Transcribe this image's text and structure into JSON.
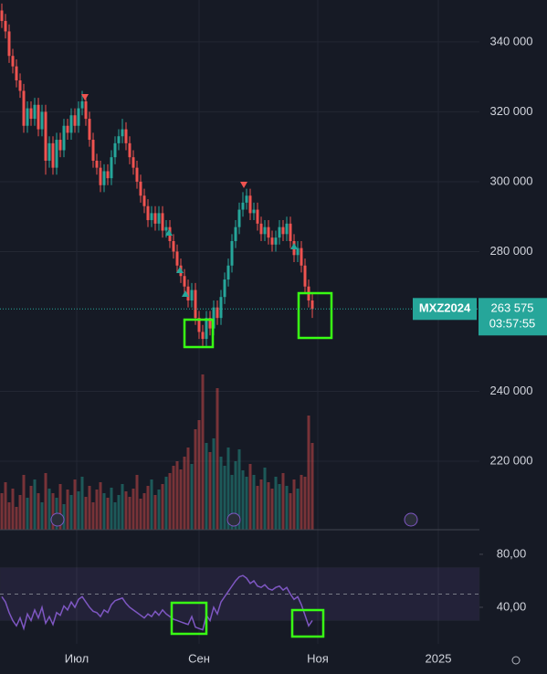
{
  "chart_data": [
    {
      "type": "candlestick",
      "name": "MXZ2024",
      "last_label": "263 575",
      "countdown": "03:57:55",
      "up_color": "#26a69a",
      "down_color": "#ef5350",
      "grid": true,
      "categories": [
        null,
        null,
        null,
        null,
        null,
        null,
        null,
        null,
        null,
        null,
        null,
        null,
        null,
        null,
        null,
        null,
        null,
        null,
        null,
        null,
        null,
        null,
        null,
        null,
        null,
        null,
        null,
        null,
        null,
        null,
        null,
        null,
        null,
        null,
        null,
        null,
        null,
        null,
        null,
        null,
        null,
        null,
        null,
        null,
        null,
        null,
        null,
        null,
        null,
        null,
        null,
        null,
        null,
        null,
        null,
        null,
        null,
        null,
        null,
        null,
        null,
        null,
        null,
        null,
        null,
        null,
        null,
        null,
        null,
        null,
        null,
        null,
        null,
        null,
        null,
        null,
        null,
        null,
        null,
        null,
        null,
        null,
        null,
        null,
        null,
        null
      ],
      "open": [
        349000,
        346000,
        343000,
        336000,
        333000,
        329000,
        326000,
        316000,
        321000,
        318000,
        322000,
        315000,
        320000,
        306000,
        311000,
        304000,
        312000,
        309000,
        316000,
        314000,
        319000,
        316000,
        321000,
        323000,
        318000,
        312000,
        306000,
        304000,
        299000,
        303000,
        301000,
        307000,
        311000,
        313000,
        315000,
        311000,
        307000,
        304000,
        300000,
        296000,
        293000,
        289000,
        291000,
        288000,
        291000,
        286000,
        287000,
        283000,
        280000,
        276000,
        273000,
        270000,
        266000,
        269000,
        261000,
        257000,
        255000,
        261000,
        258000,
        264000,
        261000,
        267000,
        272000,
        276000,
        283000,
        287000,
        292000,
        294000,
        296000,
        291000,
        292000,
        288000,
        285000,
        287000,
        284000,
        282000,
        284000,
        287000,
        285000,
        288000,
        283000,
        279000,
        281000,
        276000,
        270000,
        266000
      ],
      "high": [
        351000,
        348000,
        345000,
        338000,
        335000,
        331000,
        328000,
        323000,
        323000,
        324000,
        324000,
        322000,
        322000,
        313000,
        313000,
        314000,
        314000,
        318000,
        318000,
        321000,
        321000,
        323000,
        326000,
        325000,
        320000,
        314000,
        308000,
        306000,
        305000,
        305000,
        309000,
        313000,
        315000,
        318000,
        317000,
        313000,
        309000,
        306000,
        302000,
        298000,
        295000,
        293000,
        293000,
        293000,
        293000,
        289000,
        289000,
        285000,
        282000,
        278000,
        275000,
        272000,
        271000,
        271000,
        263000,
        259000,
        263000,
        263000,
        266000,
        266000,
        269000,
        274000,
        278000,
        285000,
        289000,
        294000,
        297000,
        298000,
        298000,
        294000,
        294000,
        290000,
        289000,
        289000,
        286000,
        286000,
        289000,
        289000,
        290000,
        290000,
        285000,
        283000,
        283000,
        278000,
        272000,
        268000
      ],
      "low": [
        344000,
        341000,
        334000,
        331000,
        327000,
        324000,
        314000,
        314000,
        316000,
        316000,
        313000,
        313000,
        302000,
        304000,
        302000,
        302000,
        307000,
        307000,
        312000,
        312000,
        314000,
        314000,
        319000,
        316000,
        310000,
        304000,
        302000,
        297000,
        297000,
        299000,
        299000,
        305000,
        309000,
        311000,
        309000,
        305000,
        302000,
        298000,
        294000,
        291000,
        287000,
        287000,
        286000,
        286000,
        284000,
        284000,
        281000,
        278000,
        274000,
        271000,
        268000,
        264000,
        264000,
        259000,
        255000,
        253000,
        253000,
        256000,
        256000,
        259000,
        259000,
        265000,
        270000,
        274000,
        281000,
        285000,
        290000,
        292000,
        289000,
        289000,
        286000,
        283000,
        283000,
        282000,
        280000,
        280000,
        282000,
        283000,
        283000,
        281000,
        277000,
        277000,
        274000,
        268000,
        264000,
        261000
      ],
      "close": [
        346000,
        343000,
        336000,
        333000,
        329000,
        326000,
        316000,
        321000,
        318000,
        322000,
        315000,
        320000,
        306000,
        311000,
        304000,
        312000,
        309000,
        316000,
        314000,
        319000,
        316000,
        321000,
        323000,
        318000,
        312000,
        306000,
        304000,
        299000,
        303000,
        301000,
        307000,
        311000,
        313000,
        315000,
        311000,
        307000,
        304000,
        300000,
        296000,
        293000,
        289000,
        291000,
        288000,
        291000,
        286000,
        287000,
        283000,
        280000,
        276000,
        273000,
        270000,
        266000,
        269000,
        261000,
        257000,
        255000,
        261000,
        258000,
        264000,
        261000,
        267000,
        272000,
        276000,
        283000,
        287000,
        292000,
        294000,
        296000,
        291000,
        292000,
        288000,
        285000,
        287000,
        284000,
        282000,
        284000,
        287000,
        285000,
        288000,
        283000,
        279000,
        281000,
        276000,
        270000,
        266000,
        263575
      ],
      "volume": [
        40,
        52,
        30,
        45,
        25,
        38,
        60,
        35,
        48,
        55,
        40,
        30,
        62,
        45,
        40,
        35,
        50,
        28,
        44,
        38,
        55,
        42,
        58,
        36,
        48,
        30,
        44,
        52,
        40,
        35,
        46,
        30,
        38,
        50,
        42,
        36,
        45,
        60,
        34,
        40,
        48,
        55,
        38,
        44,
        50,
        58,
        62,
        70,
        75,
        66,
        80,
        90,
        72,
        110,
        120,
        170,
        95,
        85,
        100,
        155,
        80,
        70,
        90,
        60,
        75,
        88,
        65,
        58,
        72,
        60,
        48,
        55,
        68,
        52,
        45,
        58,
        50,
        62,
        48,
        40,
        55,
        45,
        60,
        58,
        125,
        95
      ],
      "ylim": [
        200400,
        352000
      ],
      "yticks": [
        {
          "value": 340000,
          "label": "340 000"
        },
        {
          "value": 320000,
          "label": "320 000"
        },
        {
          "value": 300000,
          "label": "300 000"
        },
        {
          "value": 280000,
          "label": "280 000"
        },
        {
          "value": 240000,
          "label": "240 000"
        },
        {
          "value": 220000,
          "label": "220 000"
        }
      ],
      "xlim": [
        -0.5,
        130.75
      ],
      "xticks": [
        {
          "value": 20.5,
          "label": "Июл"
        },
        {
          "value": 54,
          "label": "Сен"
        },
        {
          "value": 86.5,
          "label": "Ноя"
        },
        {
          "value": 119.5,
          "label": "2025"
        }
      ]
    },
    {
      "type": "line",
      "color": "#7e57c2",
      "band": [
        30,
        70
      ],
      "midline": 50,
      "categories": [
        null,
        null,
        null,
        null,
        null,
        null,
        null,
        null,
        null,
        null,
        null,
        null,
        null,
        null,
        null,
        null,
        null,
        null,
        null,
        null,
        null,
        null,
        null,
        null,
        null,
        null,
        null,
        null,
        null,
        null,
        null,
        null,
        null,
        null,
        null,
        null,
        null,
        null,
        null,
        null,
        null,
        null,
        null,
        null,
        null,
        null,
        null,
        null,
        null,
        null,
        null,
        null,
        null,
        null,
        null,
        null,
        null,
        null,
        null,
        null,
        null,
        null,
        null,
        null,
        null,
        null,
        null,
        null,
        null,
        null,
        null,
        null,
        null,
        null,
        null,
        null,
        null,
        null,
        null,
        null,
        null,
        null,
        null,
        null,
        null,
        null
      ],
      "values": [
        48,
        44,
        36,
        30,
        26,
        32,
        24,
        35,
        30,
        38,
        32,
        40,
        28,
        33,
        27,
        36,
        34,
        41,
        38,
        44,
        40,
        46,
        48,
        44,
        40,
        37,
        36,
        33,
        38,
        36,
        42,
        45,
        46,
        47,
        43,
        40,
        38,
        36,
        34,
        32,
        35,
        33,
        37,
        34,
        38,
        35,
        33,
        31,
        30,
        29,
        28,
        27,
        33,
        25,
        24,
        23,
        34,
        30,
        40,
        35,
        44,
        48,
        52,
        56,
        60,
        63,
        64,
        62,
        58,
        60,
        56,
        55,
        57,
        54,
        53,
        55,
        56,
        53,
        55,
        50,
        46,
        48,
        42,
        34,
        26,
        30
      ],
      "ylim": [
        12.4,
        97.2
      ],
      "yticks": [
        {
          "value": 80,
          "label": "80,00"
        },
        {
          "value": 40,
          "label": "40,00"
        }
      ]
    }
  ]
}
